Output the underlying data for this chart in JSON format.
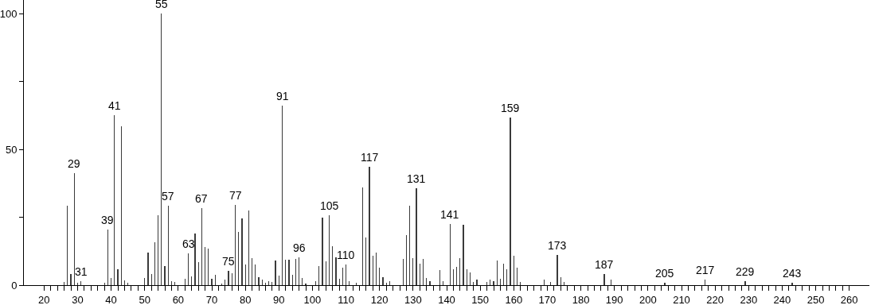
{
  "chart_data": {
    "type": "bar",
    "color": "#3a3a3a",
    "x": [
      26,
      27,
      28,
      29,
      30,
      31,
      38,
      39,
      40,
      41,
      42,
      43,
      44,
      45,
      50,
      51,
      52,
      53,
      54,
      55,
      56,
      57,
      58,
      59,
      62,
      63,
      64,
      65,
      66,
      67,
      68,
      69,
      70,
      71,
      73,
      74,
      75,
      76,
      77,
      78,
      79,
      80,
      81,
      82,
      83,
      84,
      85,
      86,
      87,
      88,
      89,
      90,
      91,
      92,
      93,
      94,
      95,
      96,
      97,
      98,
      101,
      102,
      103,
      104,
      105,
      106,
      107,
      108,
      109,
      110,
      111,
      113,
      115,
      116,
      117,
      118,
      119,
      120,
      121,
      122,
      123,
      127,
      128,
      129,
      130,
      131,
      132,
      133,
      134,
      135,
      138,
      139,
      141,
      142,
      143,
      144,
      145,
      146,
      147,
      148,
      149,
      152,
      153,
      154,
      155,
      156,
      157,
      158,
      159,
      160,
      161,
      162,
      169,
      171,
      173,
      174,
      175,
      187,
      189,
      205,
      217,
      229,
      243
    ],
    "values": [
      1.2,
      29.3,
      4.1,
      41.3,
      1,
      1.5,
      0.8,
      20.5,
      2.6,
      62.5,
      5.8,
      58.4,
      1.7,
      0.8,
      2.6,
      12,
      4.1,
      15.8,
      25.8,
      100,
      7,
      29.2,
      1.5,
      1.2,
      2.4,
      11.8,
      3.2,
      19,
      8.5,
      28.4,
      14.1,
      13.5,
      2.4,
      3.8,
      0.7,
      2,
      5.3,
      4.4,
      29.4,
      19.6,
      24.7,
      7.6,
      27.4,
      9.8,
      7.6,
      2.9,
      2,
      0.9,
      1.6,
      1.2,
      9.1,
      3.5,
      66,
      9.5,
      9.5,
      3.8,
      9.7,
      10.3,
      2.6,
      0.7,
      1.5,
      7,
      24.8,
      8.8,
      25.8,
      14.3,
      10.3,
      2.4,
      6.5,
      7.6,
      1.4,
      0.9,
      35.9,
      17.6,
      43.7,
      10.9,
      12,
      6.3,
      2.9,
      0.9,
      1.4,
      9.7,
      18.3,
      29.3,
      9.9,
      35.7,
      8,
      9.7,
      2.6,
      1.5,
      5.6,
      1.6,
      22.6,
      5.9,
      6.7,
      9.9,
      22.2,
      5.8,
      4.8,
      1.1,
      2,
      1.1,
      2,
      1.6,
      9.1,
      2.4,
      8,
      5.8,
      61.6,
      10.8,
      6.5,
      1.2,
      2,
      1.1,
      11.1,
      3,
      1.3,
      4.1,
      2.1,
      0.9,
      2.1,
      1.5,
      0.8
    ],
    "xlim": [
      14,
      266
    ],
    "ylim": [
      0,
      105
    ],
    "xticks": [
      20,
      {
        "value": 22,
        "label": null
      },
      {
        "value": 24,
        "label": null
      },
      {
        "value": 26,
        "label": null
      },
      {
        "value": 28,
        "label": null
      },
      30,
      {
        "value": 32,
        "label": null
      },
      {
        "value": 34,
        "label": null
      },
      {
        "value": 36,
        "label": null
      },
      {
        "value": 38,
        "label": null
      },
      40,
      {
        "value": 42,
        "label": null
      },
      {
        "value": 44,
        "label": null
      },
      {
        "value": 46,
        "label": null
      },
      {
        "value": 48,
        "label": null
      },
      50,
      {
        "value": 52,
        "label": null
      },
      {
        "value": 54,
        "label": null
      },
      {
        "value": 56,
        "label": null
      },
      {
        "value": 58,
        "label": null
      },
      60,
      {
        "value": 62,
        "label": null
      },
      {
        "value": 64,
        "label": null
      },
      {
        "value": 66,
        "label": null
      },
      {
        "value": 68,
        "label": null
      },
      70,
      {
        "value": 72,
        "label": null
      },
      {
        "value": 74,
        "label": null
      },
      {
        "value": 76,
        "label": null
      },
      {
        "value": 78,
        "label": null
      },
      80,
      {
        "value": 82,
        "label": null
      },
      {
        "value": 84,
        "label": null
      },
      {
        "value": 86,
        "label": null
      },
      {
        "value": 88,
        "label": null
      },
      90,
      {
        "value": 92,
        "label": null
      },
      {
        "value": 94,
        "label": null
      },
      {
        "value": 96,
        "label": null
      },
      {
        "value": 98,
        "label": null
      },
      100,
      {
        "value": 102,
        "label": null
      },
      {
        "value": 104,
        "label": null
      },
      {
        "value": 106,
        "label": null
      },
      {
        "value": 108,
        "label": null
      },
      110,
      {
        "value": 112,
        "label": null
      },
      {
        "value": 114,
        "label": null
      },
      {
        "value": 116,
        "label": null
      },
      {
        "value": 118,
        "label": null
      },
      120,
      {
        "value": 122,
        "label": null
      },
      {
        "value": 124,
        "label": null
      },
      {
        "value": 126,
        "label": null
      },
      {
        "value": 128,
        "label": null
      },
      130,
      {
        "value": 132,
        "label": null
      },
      {
        "value": 134,
        "label": null
      },
      {
        "value": 136,
        "label": null
      },
      {
        "value": 138,
        "label": null
      },
      140,
      {
        "value": 142,
        "label": null
      },
      {
        "value": 144,
        "label": null
      },
      {
        "value": 146,
        "label": null
      },
      {
        "value": 148,
        "label": null
      },
      150,
      {
        "value": 152,
        "label": null
      },
      {
        "value": 154,
        "label": null
      },
      {
        "value": 156,
        "label": null
      },
      {
        "value": 158,
        "label": null
      },
      160,
      {
        "value": 162,
        "label": null
      },
      {
        "value": 164,
        "label": null
      },
      {
        "value": 166,
        "label": null
      },
      {
        "value": 168,
        "label": null
      },
      170,
      {
        "value": 172,
        "label": null
      },
      {
        "value": 174,
        "label": null
      },
      {
        "value": 176,
        "label": null
      },
      {
        "value": 178,
        "label": null
      },
      180,
      {
        "value": 182,
        "label": null
      },
      {
        "value": 184,
        "label": null
      },
      {
        "value": 186,
        "label": null
      },
      {
        "value": 188,
        "label": null
      },
      190,
      {
        "value": 192,
        "label": null
      },
      {
        "value": 194,
        "label": null
      },
      {
        "value": 196,
        "label": null
      },
      {
        "value": 198,
        "label": null
      },
      200,
      {
        "value": 202,
        "label": null
      },
      {
        "value": 204,
        "label": null
      },
      {
        "value": 206,
        "label": null
      },
      {
        "value": 208,
        "label": null
      },
      210,
      {
        "value": 212,
        "label": null
      },
      {
        "value": 214,
        "label": null
      },
      {
        "value": 216,
        "label": null
      },
      {
        "value": 218,
        "label": null
      },
      220,
      {
        "value": 222,
        "label": null
      },
      {
        "value": 224,
        "label": null
      },
      {
        "value": 226,
        "label": null
      },
      {
        "value": 228,
        "label": null
      },
      230,
      {
        "value": 232,
        "label": null
      },
      {
        "value": 234,
        "label": null
      },
      {
        "value": 236,
        "label": null
      },
      {
        "value": 238,
        "label": null
      },
      240,
      {
        "value": 242,
        "label": null
      },
      {
        "value": 244,
        "label": null
      },
      {
        "value": 246,
        "label": null
      },
      {
        "value": 248,
        "label": null
      },
      250,
      {
        "value": 252,
        "label": null
      },
      {
        "value": 254,
        "label": null
      },
      {
        "value": 256,
        "label": null
      },
      {
        "value": 258,
        "label": null
      },
      260
    ],
    "yticks": [
      0,
      {
        "value": 25,
        "label": null
      },
      50,
      {
        "value": 75,
        "label": null
      },
      100
    ],
    "annotations": [
      {
        "text": "29",
        "x": 29,
        "y": 41.3
      },
      {
        "text": "31",
        "x": 31,
        "y": 1.5
      },
      {
        "text": "39",
        "x": 39,
        "y": 20.5
      },
      {
        "text": "41",
        "x": 41,
        "y": 62.5
      },
      {
        "text": "55",
        "x": 55,
        "y": 100
      },
      {
        "text": "57",
        "x": 57,
        "y": 29.2
      },
      {
        "text": "63",
        "x": 63,
        "y": 11.8
      },
      {
        "text": "67",
        "x": 67,
        "y": 28.4
      },
      {
        "text": "75",
        "x": 75,
        "y": 5.3
      },
      {
        "text": "77",
        "x": 77,
        "y": 29.4
      },
      {
        "text": "91",
        "x": 91,
        "y": 66
      },
      {
        "text": "96",
        "x": 96,
        "y": 10.3
      },
      {
        "text": "105",
        "x": 105,
        "y": 25.8
      },
      {
        "text": "110",
        "x": 110,
        "y": 7.6
      },
      {
        "text": "117",
        "x": 117,
        "y": 43.7
      },
      {
        "text": "131",
        "x": 131,
        "y": 35.7
      },
      {
        "text": "141",
        "x": 141,
        "y": 22.6
      },
      {
        "text": "159",
        "x": 159,
        "y": 61.6
      },
      {
        "text": "173",
        "x": 173,
        "y": 11.1
      },
      {
        "text": "187",
        "x": 187,
        "y": 4.1
      },
      {
        "text": "205",
        "x": 205,
        "y": 0.9
      },
      {
        "text": "217",
        "x": 217,
        "y": 2.1
      },
      {
        "text": "229",
        "x": 229,
        "y": 1.5
      },
      {
        "text": "243",
        "x": 243,
        "y": 0.8
      }
    ]
  }
}
